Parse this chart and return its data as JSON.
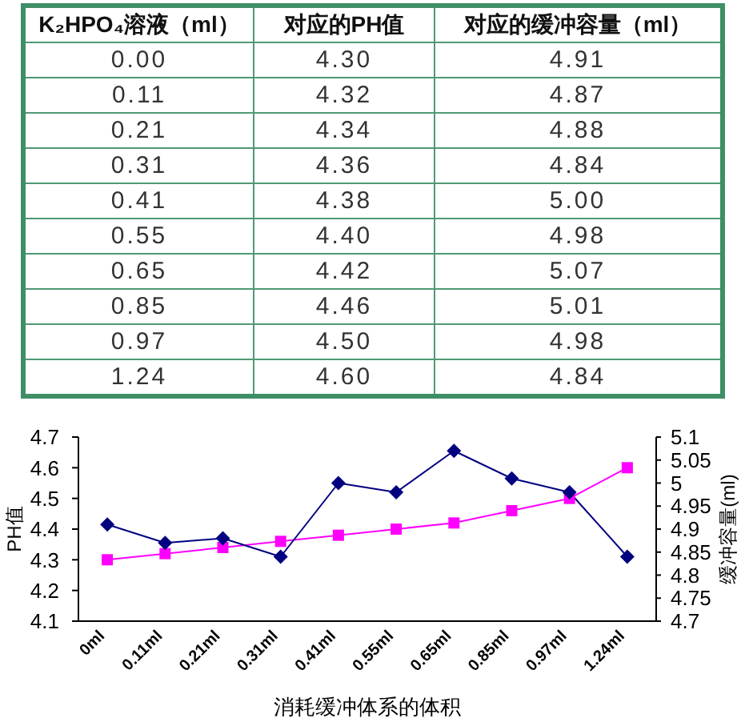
{
  "chart_data": [
    {
      "type": "other",
      "annotations": [
        "K₂HPO₄溶液（ml）",
        "对应的PH值",
        "对应的缓冲容量（ml）",
        "0.00",
        "4.30",
        "4.91",
        "0.11",
        "4.32",
        "4.87",
        "0.21",
        "4.34",
        "4.88",
        "0.31",
        "4.36",
        "4.84",
        "0.41",
        "4.38",
        "5.00",
        "0.55",
        "4.40",
        "4.98",
        "0.65",
        "4.42",
        "5.07",
        "0.85",
        "4.46",
        "5.01",
        "0.97",
        "4.50",
        "4.98",
        "1.24",
        "4.60",
        "4.84"
      ]
    },
    {
      "type": "line",
      "xlabel": "消耗缓冲体系的体积",
      "ylabel": "PH值",
      "y2label": "缓冲容量(ml)",
      "categories": [
        "0ml",
        "0.11ml",
        "0.21ml",
        "0.31ml",
        "0.41ml",
        "0.55ml",
        "0.65ml",
        "0.85ml",
        "0.97ml",
        "1.24ml"
      ],
      "series": [
        {
          "color": "#ff00ff",
          "marker": "square",
          "values": [
            4.3,
            4.32,
            4.34,
            4.36,
            4.38,
            4.4,
            4.42,
            4.46,
            4.5,
            4.6
          ]
        },
        {
          "color": "#000080",
          "marker": "diamond",
          "axis": "y2",
          "values": [
            4.91,
            4.87,
            4.88,
            4.84,
            5.0,
            4.98,
            5.07,
            5.01,
            4.98,
            4.84
          ]
        }
      ],
      "ylim": [
        4.1,
        4.7
      ],
      "yticks": [
        4.1,
        4.2,
        4.3,
        4.4,
        4.5,
        4.6,
        4.7
      ],
      "y2lim": [
        4.7,
        5.1
      ],
      "y2ticks": [
        4.7,
        4.75,
        4.8,
        4.85,
        4.9,
        4.95,
        5,
        5.05,
        5.1
      ]
    }
  ]
}
